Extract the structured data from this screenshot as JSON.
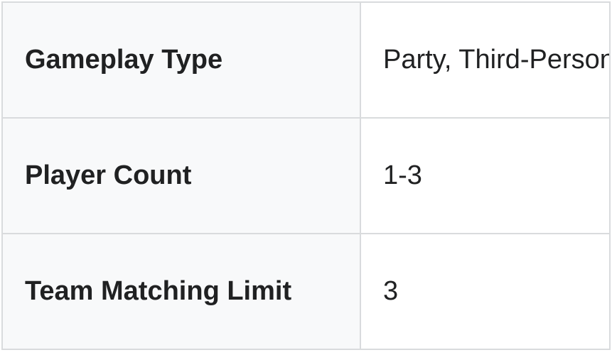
{
  "table": {
    "rows": [
      {
        "label": "Gameplay Type",
        "value": "Party, Third-Person"
      },
      {
        "label": "Player Count",
        "value": "1-3"
      },
      {
        "label": "Team Matching Limit",
        "value": "3"
      }
    ]
  },
  "colors": {
    "label_cell_bg": "#f8f9fa",
    "value_cell_bg": "#ffffff",
    "border": "#d9dbdd",
    "text": "#202122"
  }
}
